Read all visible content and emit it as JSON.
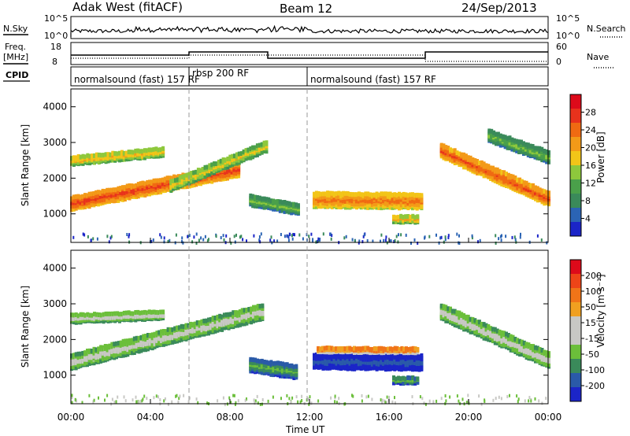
{
  "header": {
    "site": "Adak West (fitACF)",
    "beam": "Beam 12",
    "date": "24/Sep/2013"
  },
  "noise_panel": {
    "left_label": "N.Sky",
    "left_ticks": [
      "10^5",
      "10^0"
    ],
    "right_ticks": [
      "10^5",
      "10^0"
    ],
    "right_label": "N.Search"
  },
  "freq_panel": {
    "left_label_1": "Freq.",
    "left_label_2": "[MHz]",
    "left_ticks": [
      "18",
      "8"
    ],
    "right_ticks": [
      "60",
      "0"
    ],
    "right_label": "Nave"
  },
  "cpid": {
    "label": "CPID",
    "segments": [
      {
        "text": "normalsound (fast) 157 RF"
      },
      {
        "text": "rbsp 200 RF"
      },
      {
        "text": "normalsound (fast) 157 RF"
      }
    ]
  },
  "colors": {
    "power": [
      "#1b25c8",
      "#2b64b4",
      "#3a8a5a",
      "#4aa04a",
      "#8dc83c",
      "#f2c518",
      "#f39a18",
      "#f06a12",
      "#e8321c",
      "#dd0a1a"
    ],
    "velocity": [
      "#1b25c8",
      "#2a5aa8",
      "#3a8a5a",
      "#6bbf3a",
      "#c8c8c4",
      "#c8c8c4",
      "#f0a020",
      "#f07418",
      "#ee4418",
      "#dd0a1a"
    ]
  },
  "time_axis": {
    "ticks": [
      "00:00",
      "04:00",
      "08:00",
      "12:00",
      "16:00",
      "20:00",
      "00:00"
    ],
    "label": "Time UT"
  },
  "chart_data": [
    {
      "type": "heatmap",
      "name": "power",
      "ylabel": "Slant Range [km]",
      "y_ticks": [
        "1000",
        "2000",
        "3000",
        "4000"
      ],
      "ylim": [
        200,
        4500
      ],
      "x_hours": [
        0,
        24
      ],
      "colorbar_label": "Power [dB]",
      "colorbar_ticks": [
        "4",
        "8",
        "12",
        "16",
        "20",
        "24",
        "28"
      ],
      "colorbar_range": [
        0,
        32
      ],
      "echo_bands": [
        {
          "start_h": 0.0,
          "end_h": 8.4,
          "range_start_km": 1300,
          "range_end_km": 2250,
          "width_km": 350,
          "value": 27
        },
        {
          "start_h": 0.0,
          "end_h": 4.6,
          "range_start_km": 2500,
          "range_end_km": 2750,
          "width_km": 220,
          "value": 20
        },
        {
          "start_h": 5.0,
          "end_h": 9.8,
          "range_start_km": 1800,
          "range_end_km": 2900,
          "width_km": 260,
          "value": 18
        },
        {
          "start_h": 9.0,
          "end_h": 11.4,
          "range_start_km": 1400,
          "range_end_km": 1150,
          "width_km": 280,
          "value": 14
        },
        {
          "start_h": 12.2,
          "end_h": 17.6,
          "range_start_km": 1420,
          "range_end_km": 1380,
          "width_km": 420,
          "value": 24
        },
        {
          "start_h": 16.2,
          "end_h": 17.4,
          "range_start_km": 870,
          "range_end_km": 870,
          "width_km": 180,
          "value": 20
        },
        {
          "start_h": 18.6,
          "end_h": 24.0,
          "range_start_km": 2800,
          "range_end_km": 1450,
          "width_km": 380,
          "value": 26
        },
        {
          "start_h": 21.0,
          "end_h": 24.0,
          "range_start_km": 3200,
          "range_end_km": 2600,
          "width_km": 300,
          "value": 14
        }
      ]
    },
    {
      "type": "heatmap",
      "name": "velocity",
      "ylabel": "Slant Range [km]",
      "y_ticks": [
        "1000",
        "2000",
        "3000",
        "4000"
      ],
      "ylim": [
        200,
        4500
      ],
      "x_hours": [
        0,
        24
      ],
      "colorbar_label": "Velocity [m s⁻¹]",
      "colorbar_ticks": [
        "200",
        "100",
        "50",
        "15",
        "-15",
        "-50",
        "-100",
        "-200"
      ],
      "colorbar_range": [
        -250,
        250
      ],
      "echo_bands": [
        {
          "start_h": 0.0,
          "end_h": 9.6,
          "range_start_km": 1400,
          "range_end_km": 2800,
          "width_km": 420,
          "value": 0
        },
        {
          "start_h": 0.0,
          "end_h": 4.6,
          "range_start_km": 2600,
          "range_end_km": 2700,
          "width_km": 220,
          "value": 0
        },
        {
          "start_h": 9.0,
          "end_h": 11.3,
          "range_start_km": 1300,
          "range_end_km": 1100,
          "width_km": 350,
          "value": -80
        },
        {
          "start_h": 12.2,
          "end_h": 17.6,
          "range_start_km": 1420,
          "range_end_km": 1380,
          "width_km": 420,
          "value": -160
        },
        {
          "start_h": 12.4,
          "end_h": 17.4,
          "range_start_km": 1720,
          "range_end_km": 1700,
          "width_km": 120,
          "value": 140
        },
        {
          "start_h": 16.2,
          "end_h": 17.4,
          "range_start_km": 880,
          "range_end_km": 880,
          "width_km": 200,
          "value": -80
        },
        {
          "start_h": 18.6,
          "end_h": 24.0,
          "range_start_km": 2800,
          "range_end_km": 1450,
          "width_km": 420,
          "value": 0
        }
      ]
    }
  ]
}
